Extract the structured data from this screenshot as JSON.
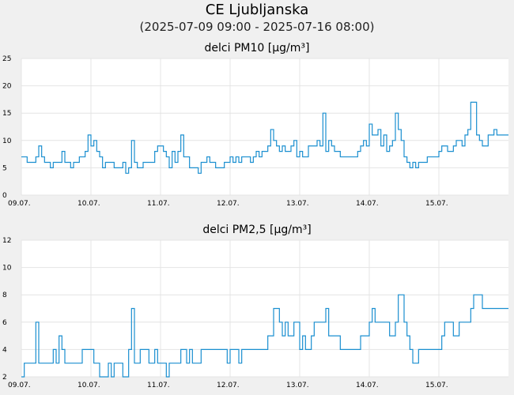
{
  "page": {
    "title": "CE Ljubljanska",
    "subtitle": "(2025-07-09 09:00 - 2025-07-16 08:00)"
  },
  "colors": {
    "background": "#f0f0f0",
    "plot_background": "#ffffff",
    "grid": "#e4e4e4",
    "line": "#1a8fd0"
  },
  "chart_data": [
    {
      "type": "line",
      "title": "delci PM10 [µg/m³]",
      "xlabel": "",
      "ylabel": "",
      "ylim": [
        0,
        25
      ],
      "yticks": [
        0,
        5,
        10,
        15,
        20,
        25
      ],
      "xlim": [
        0,
        168
      ],
      "xticks": [
        {
          "x": 0,
          "label": "09.07."
        },
        {
          "x": 24,
          "label": "10.07."
        },
        {
          "x": 48,
          "label": "11.07."
        },
        {
          "x": 72,
          "label": "12.07."
        },
        {
          "x": 96,
          "label": "13.07."
        },
        {
          "x": 120,
          "label": "14.07."
        },
        {
          "x": 144,
          "label": "15.07."
        }
      ],
      "grid": true,
      "x": [
        0,
        1,
        2,
        3,
        4,
        5,
        6,
        7,
        8,
        9,
        10,
        11,
        12,
        13,
        14,
        15,
        16,
        17,
        18,
        19,
        20,
        21,
        22,
        23,
        24,
        25,
        26,
        27,
        28,
        29,
        30,
        31,
        32,
        33,
        34,
        35,
        36,
        37,
        38,
        39,
        40,
        41,
        42,
        43,
        44,
        45,
        46,
        47,
        48,
        49,
        50,
        51,
        52,
        53,
        54,
        55,
        56,
        57,
        58,
        59,
        60,
        61,
        62,
        63,
        64,
        65,
        66,
        67,
        68,
        69,
        70,
        71,
        72,
        73,
        74,
        75,
        76,
        77,
        78,
        79,
        80,
        81,
        82,
        83,
        84,
        85,
        86,
        87,
        88,
        89,
        90,
        91,
        92,
        93,
        94,
        95,
        96,
        97,
        98,
        99,
        100,
        101,
        102,
        103,
        104,
        105,
        106,
        107,
        108,
        109,
        110,
        111,
        112,
        113,
        114,
        115,
        116,
        117,
        118,
        119,
        120,
        121,
        122,
        123,
        124,
        125,
        126,
        127,
        128,
        129,
        130,
        131,
        132,
        133,
        134,
        135,
        136,
        137,
        138,
        139,
        140,
        141,
        142,
        143,
        144,
        145,
        146,
        147,
        148,
        149,
        150,
        151,
        152,
        153,
        154,
        155,
        156,
        157,
        158,
        159,
        160,
        161,
        162,
        163,
        164,
        165,
        166,
        167
      ],
      "series": [
        {
          "values": [
            7,
            7,
            6,
            6,
            6,
            7,
            9,
            7,
            6,
            6,
            5,
            6,
            6,
            6,
            8,
            6,
            6,
            5,
            6,
            6,
            7,
            7,
            8,
            11,
            9,
            10,
            8,
            7,
            5,
            6,
            6,
            6,
            5,
            5,
            5,
            6,
            4,
            5,
            10,
            6,
            5,
            5,
            6,
            6,
            6,
            6,
            8,
            9,
            9,
            8,
            7,
            5,
            8,
            6,
            8,
            11,
            7,
            7,
            5,
            5,
            5,
            4,
            6,
            6,
            7,
            6,
            6,
            5,
            5,
            5,
            6,
            6,
            7,
            6,
            7,
            6,
            7,
            7,
            7,
            6,
            7,
            8,
            7,
            8,
            8,
            9,
            12,
            10,
            9,
            8,
            9,
            8,
            8,
            9,
            10,
            7,
            8,
            7,
            7,
            9,
            9,
            9,
            10,
            9,
            15,
            8,
            10,
            9,
            8,
            8,
            7,
            7,
            7,
            7,
            7,
            7,
            8,
            9,
            10,
            9,
            13,
            11,
            11,
            12,
            9,
            11,
            8,
            9,
            10,
            15,
            12,
            10,
            7,
            6,
            5,
            6,
            5,
            6,
            6,
            6,
            7,
            7,
            7,
            7,
            8,
            9,
            9,
            8,
            8,
            9,
            10,
            10,
            9,
            11,
            12,
            17,
            17,
            11,
            10,
            9,
            9,
            11,
            11,
            12,
            11,
            11,
            11,
            11
          ]
        }
      ]
    },
    {
      "type": "line",
      "title": "delci PM2,5 [µg/m³]",
      "xlabel": "",
      "ylabel": "",
      "ylim": [
        2,
        12
      ],
      "yticks": [
        2,
        4,
        6,
        8,
        10,
        12
      ],
      "xlim": [
        0,
        168
      ],
      "xticks": [
        {
          "x": 0,
          "label": "09.07."
        },
        {
          "x": 24,
          "label": "10.07."
        },
        {
          "x": 48,
          "label": "11.07."
        },
        {
          "x": 72,
          "label": "12.07."
        },
        {
          "x": 96,
          "label": "13.07."
        },
        {
          "x": 120,
          "label": "14.07."
        },
        {
          "x": 144,
          "label": "15.07."
        }
      ],
      "grid": true,
      "x": [
        0,
        1,
        2,
        3,
        4,
        5,
        6,
        7,
        8,
        9,
        10,
        11,
        12,
        13,
        14,
        15,
        16,
        17,
        18,
        19,
        20,
        21,
        22,
        23,
        24,
        25,
        26,
        27,
        28,
        29,
        30,
        31,
        32,
        33,
        34,
        35,
        36,
        37,
        38,
        39,
        40,
        41,
        42,
        43,
        44,
        45,
        46,
        47,
        48,
        49,
        50,
        51,
        52,
        53,
        54,
        55,
        56,
        57,
        58,
        59,
        60,
        61,
        62,
        63,
        64,
        65,
        66,
        67,
        68,
        69,
        70,
        71,
        72,
        73,
        74,
        75,
        76,
        77,
        78,
        79,
        80,
        81,
        82,
        83,
        84,
        85,
        86,
        87,
        88,
        89,
        90,
        91,
        92,
        93,
        94,
        95,
        96,
        97,
        98,
        99,
        100,
        101,
        102,
        103,
        104,
        105,
        106,
        107,
        108,
        109,
        110,
        111,
        112,
        113,
        114,
        115,
        116,
        117,
        118,
        119,
        120,
        121,
        122,
        123,
        124,
        125,
        126,
        127,
        128,
        129,
        130,
        131,
        132,
        133,
        134,
        135,
        136,
        137,
        138,
        139,
        140,
        141,
        142,
        143,
        144,
        145,
        146,
        147,
        148,
        149,
        150,
        151,
        152,
        153,
        154,
        155,
        156,
        157,
        158,
        159,
        160,
        161,
        162,
        163,
        164,
        165,
        166,
        167
      ],
      "series": [
        {
          "values": [
            2,
            3,
            3,
            3,
            3,
            6,
            3,
            3,
            3,
            3,
            3,
            4,
            3,
            5,
            4,
            3,
            3,
            3,
            3,
            3,
            3,
            4,
            4,
            4,
            4,
            3,
            3,
            2,
            2,
            2,
            3,
            2,
            3,
            3,
            3,
            2,
            2,
            4,
            7,
            3,
            3,
            4,
            4,
            4,
            3,
            3,
            4,
            3,
            3,
            3,
            2,
            3,
            3,
            3,
            3,
            4,
            4,
            3,
            4,
            3,
            3,
            3,
            4,
            4,
            4,
            4,
            4,
            4,
            4,
            4,
            4,
            3,
            4,
            4,
            4,
            3,
            4,
            4,
            4,
            4,
            4,
            4,
            4,
            4,
            4,
            5,
            5,
            7,
            7,
            6,
            5,
            6,
            5,
            5,
            6,
            6,
            4,
            5,
            4,
            4,
            5,
            6,
            6,
            6,
            6,
            7,
            5,
            5,
            5,
            5,
            4,
            4,
            4,
            4,
            4,
            4,
            4,
            5,
            5,
            5,
            6,
            7,
            6,
            6,
            6,
            6,
            6,
            5,
            5,
            6,
            8,
            8,
            6,
            5,
            4,
            3,
            3,
            4,
            4,
            4,
            4,
            4,
            4,
            4,
            4,
            5,
            6,
            6,
            6,
            5,
            5,
            6,
            6,
            6,
            6,
            7,
            8,
            8,
            8,
            7,
            7,
            7,
            7,
            7,
            7,
            7,
            7,
            7
          ]
        }
      ]
    }
  ]
}
